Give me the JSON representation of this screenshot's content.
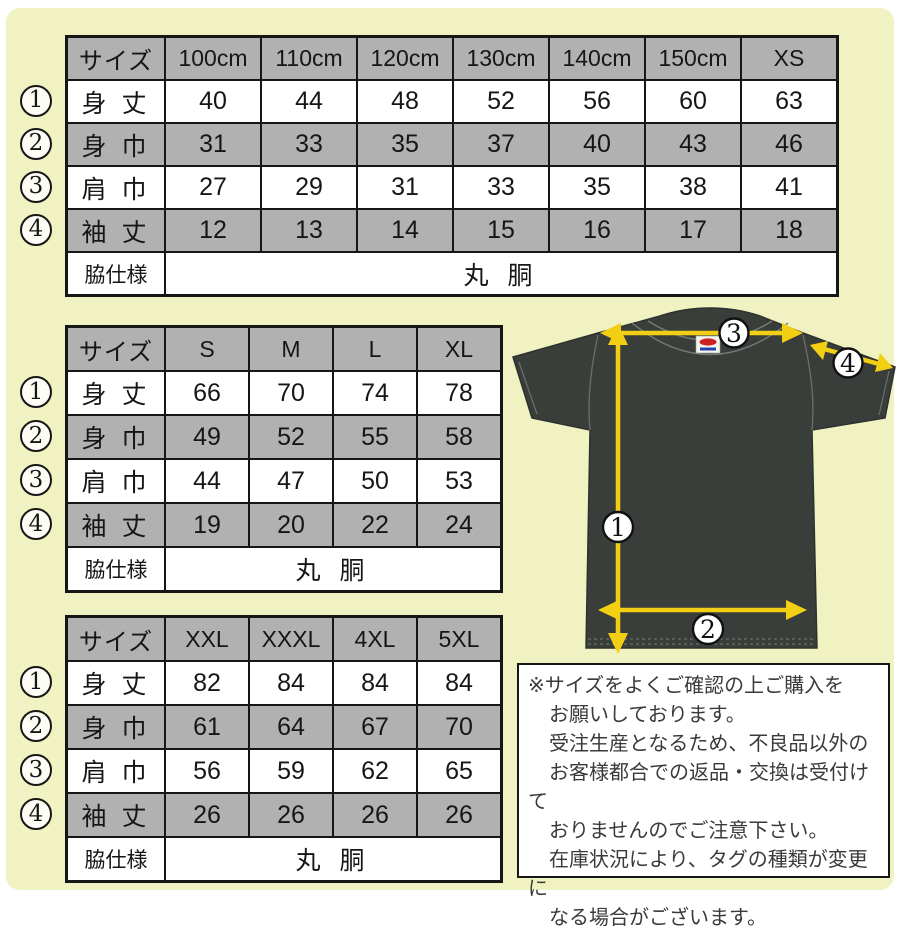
{
  "colors": {
    "sheet_bg": "#f0f2c1",
    "cell_shaded": "#b1b1b1",
    "table_border": "#161616",
    "shirt_body": "#3a3e3b",
    "arrow_yellow": "#f3cf14",
    "note_text": "#3a3a3a"
  },
  "tables": [
    {
      "name": "kids-sizes",
      "header": [
        "サイズ",
        "100cm",
        "110cm",
        "120cm",
        "130cm",
        "140cm",
        "150cm",
        "XS"
      ],
      "rows": [
        {
          "num": "1",
          "label": "身 丈",
          "values": [
            "40",
            "44",
            "48",
            "52",
            "56",
            "60",
            "63"
          ]
        },
        {
          "num": "2",
          "label": "身 巾",
          "values": [
            "31",
            "33",
            "35",
            "37",
            "40",
            "43",
            "46"
          ]
        },
        {
          "num": "3",
          "label": "肩 巾",
          "values": [
            "27",
            "29",
            "31",
            "33",
            "35",
            "38",
            "41"
          ]
        },
        {
          "num": "4",
          "label": "袖 丈",
          "values": [
            "12",
            "13",
            "14",
            "15",
            "16",
            "17",
            "18"
          ]
        }
      ],
      "footer_label": "脇仕様",
      "footer_value": "丸 胴"
    },
    {
      "name": "adult-sizes",
      "header": [
        "サイズ",
        "S",
        "M",
        "L",
        "XL"
      ],
      "rows": [
        {
          "num": "1",
          "label": "身 丈",
          "values": [
            "66",
            "70",
            "74",
            "78"
          ]
        },
        {
          "num": "2",
          "label": "身 巾",
          "values": [
            "49",
            "52",
            "55",
            "58"
          ]
        },
        {
          "num": "3",
          "label": "肩 巾",
          "values": [
            "44",
            "47",
            "50",
            "53"
          ]
        },
        {
          "num": "4",
          "label": "袖 丈",
          "values": [
            "19",
            "20",
            "22",
            "24"
          ]
        }
      ],
      "footer_label": "脇仕様",
      "footer_value": "丸 胴"
    },
    {
      "name": "big-sizes",
      "header": [
        "サイズ",
        "XXL",
        "XXXL",
        "4XL",
        "5XL"
      ],
      "rows": [
        {
          "num": "1",
          "label": "身 丈",
          "values": [
            "82",
            "84",
            "84",
            "84"
          ]
        },
        {
          "num": "2",
          "label": "身 巾",
          "values": [
            "61",
            "64",
            "67",
            "70"
          ]
        },
        {
          "num": "3",
          "label": "肩 巾",
          "values": [
            "56",
            "59",
            "62",
            "65"
          ]
        },
        {
          "num": "4",
          "label": "袖 丈",
          "values": [
            "26",
            "26",
            "26",
            "26"
          ]
        }
      ],
      "footer_label": "脇仕様",
      "footer_value": "丸 胴"
    }
  ],
  "shirt": {
    "markers": [
      {
        "label": "1",
        "meaning": "身丈"
      },
      {
        "label": "2",
        "meaning": "身巾"
      },
      {
        "label": "3",
        "meaning": "肩巾"
      },
      {
        "label": "4",
        "meaning": "袖丈"
      }
    ]
  },
  "note": {
    "lines": [
      "※サイズをよくご確認の上ご購入を",
      "お願いしております。",
      "受注生産となるため、不良品以外の",
      "お客様都合での返品・交換は受付けて",
      "おりませんのでご注意下さい。",
      "在庫状況により、タグの種類が変更に",
      "なる場合がございます。"
    ]
  }
}
